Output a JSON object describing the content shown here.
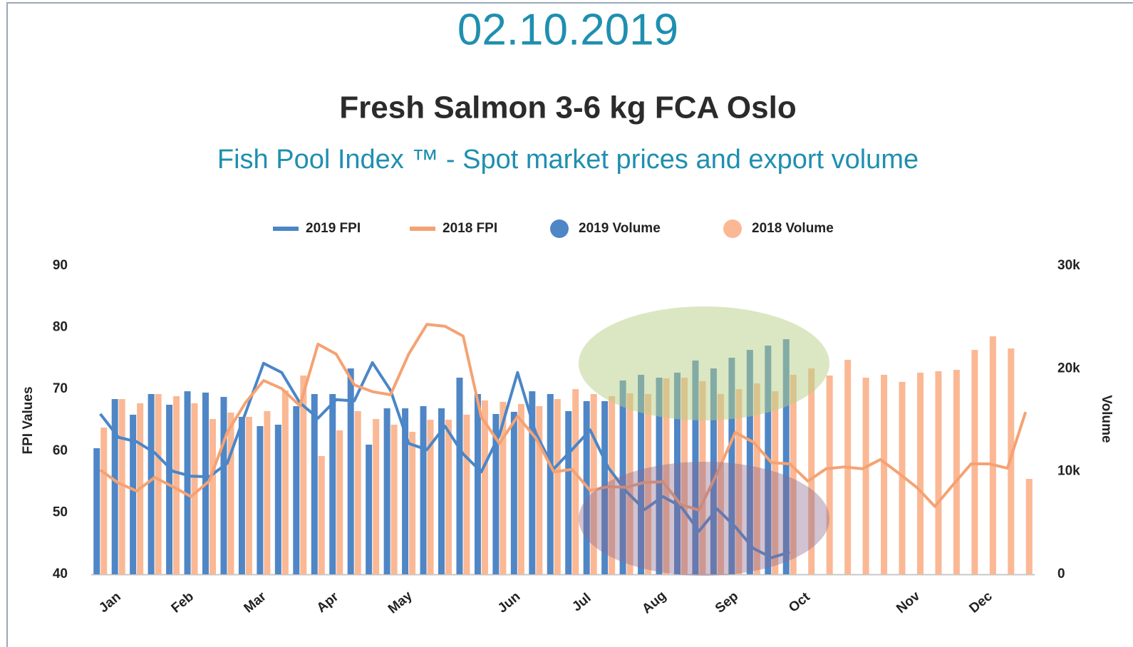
{
  "chart_data": {
    "type": "combo",
    "date": "02.10.2019",
    "title": "Fresh Salmon 3-6 kg FCA Oslo",
    "subtitle": "Fish Pool Index ™ - Spot market prices and export volume",
    "y_label": "FPI Values",
    "y2_label": "Volume",
    "categories": [
      "Jan",
      null,
      null,
      null,
      "Feb",
      null,
      null,
      null,
      "Mar",
      null,
      null,
      null,
      "Apr",
      null,
      null,
      null,
      "May",
      null,
      null,
      null,
      null,
      null,
      "Jun",
      null,
      null,
      null,
      "Jul",
      null,
      null,
      null,
      "Aug",
      null,
      null,
      null,
      "Sep",
      null,
      null,
      null,
      "Oct",
      null,
      null,
      null,
      null,
      null,
      "Nov",
      null,
      null,
      null,
      "Dec",
      null,
      null,
      null
    ],
    "ylim": [
      40,
      90
    ],
    "yticks": [
      40,
      50,
      60,
      70,
      80,
      90
    ],
    "y2lim": [
      0,
      30000
    ],
    "y2ticks": [
      0,
      {
        "value": 10000,
        "label": "10k"
      },
      {
        "value": 20000,
        "label": "20k"
      },
      {
        "value": 30000,
        "label": "30k"
      }
    ],
    "series": [
      {
        "name": "2019 FPI",
        "type": "line",
        "color": "#4a86c8",
        "values": [
          66.0,
          62.2,
          61.5,
          59.7,
          56.7,
          55.9,
          55.8,
          58.0,
          66.1,
          74.2,
          72.7,
          67.8,
          65.3,
          68.3,
          68.1,
          74.3,
          69.8,
          61.2,
          60.2,
          64.0,
          59.5,
          56.6,
          62.6,
          72.7,
          62.9,
          57.1,
          60.2,
          63.4,
          57.3,
          53.4,
          50.5,
          52.6,
          51.0,
          47.0,
          50.6,
          47.7,
          44.2,
          42.7,
          43.6,
          null,
          null,
          null,
          null,
          null,
          null,
          null,
          null,
          null,
          null,
          null,
          null,
          null
        ]
      },
      {
        "name": "2018 FPI",
        "type": "line",
        "color": "#f5a273",
        "values": [
          56.9,
          54.8,
          53.5,
          55.7,
          54.2,
          52.6,
          55.1,
          63.0,
          67.8,
          71.4,
          70.1,
          67.3,
          77.3,
          75.7,
          70.7,
          69.6,
          69.1,
          75.7,
          80.5,
          80.2,
          78.6,
          65.5,
          61.2,
          65.6,
          62.1,
          56.6,
          57.0,
          53.6,
          54.2,
          54.1,
          54.9,
          55.0,
          51.3,
          50.4,
          56.4,
          63.0,
          61.4,
          58.1,
          57.9,
          55.1,
          57.1,
          57.4,
          57.1,
          58.6,
          56.4,
          54.1,
          51.0,
          54.5,
          57.9,
          57.9,
          57.2,
          66.3
        ]
      },
      {
        "name": "2019 Volume",
        "type": "bar",
        "axis": "y2",
        "color": "#4f86c6",
        "values": [
          12260,
          17040,
          15520,
          17530,
          16490,
          17800,
          17670,
          17250,
          15310,
          14410,
          14550,
          16350,
          17530,
          17530,
          20020,
          12610,
          16140,
          16140,
          16350,
          16140,
          19120,
          17530,
          15590,
          15800,
          17800,
          17530,
          15870,
          16840,
          16840,
          18850,
          19400,
          19120,
          19610,
          20790,
          20020,
          21060,
          21820,
          22240,
          22860,
          null,
          null,
          null,
          null,
          null,
          null,
          null,
          null,
          null,
          null,
          null,
          null,
          null
        ]
      },
      {
        "name": "2018 Volume",
        "type": "bar",
        "axis": "y2",
        "color": "#fbb894",
        "values": [
          14270,
          17040,
          16630,
          17530,
          17320,
          16630,
          15100,
          15730,
          15310,
          15870,
          17880,
          19330,
          11500,
          14000,
          15870,
          15100,
          14550,
          13860,
          15030,
          15030,
          15520,
          16910,
          16770,
          16560,
          16350,
          17040,
          18010,
          17530,
          17320,
          17600,
          17530,
          19050,
          19120,
          18780,
          17530,
          18010,
          18570,
          17800,
          19400,
          20020,
          19330,
          20860,
          19120,
          19400,
          18710,
          19610,
          19750,
          19880,
          21820,
          23140,
          21960,
          9280
        ]
      }
    ]
  }
}
